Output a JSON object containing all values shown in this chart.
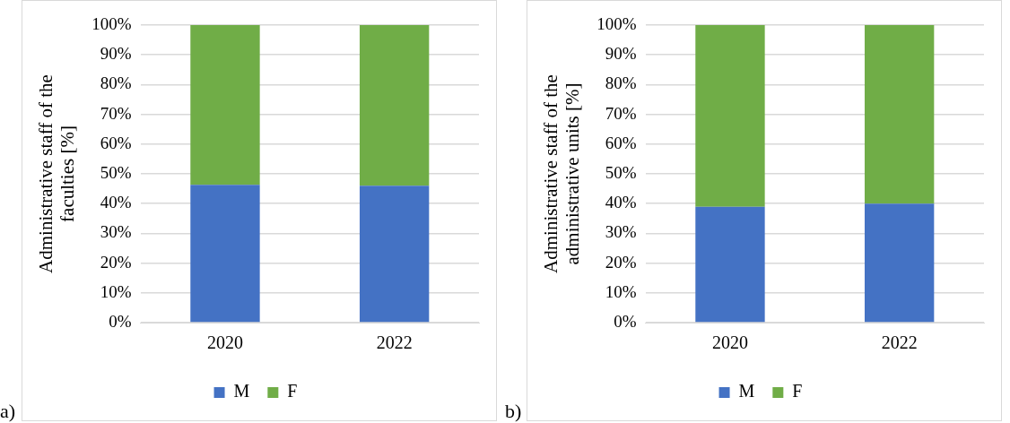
{
  "chart_data": [
    {
      "type": "bar",
      "stacked": true,
      "ylabel": "Administrative staff of the faculties [%]",
      "categories": [
        "2020",
        "2022"
      ],
      "series": [
        {
          "name": "M",
          "color": "#4472c4",
          "values": [
            46.3,
            46.0
          ]
        },
        {
          "name": "F",
          "color": "#70ad47",
          "values": [
            53.7,
            54.0
          ]
        }
      ],
      "ylim": [
        0,
        100
      ],
      "yticks": [
        {
          "value": 0,
          "label": "0%"
        },
        {
          "value": 10,
          "label": "10%"
        },
        {
          "value": 20,
          "label": "20%"
        },
        {
          "value": 30,
          "label": "30%"
        },
        {
          "value": 40,
          "label": "40%"
        },
        {
          "value": 50,
          "label": "50%"
        },
        {
          "value": 60,
          "label": "60%"
        },
        {
          "value": 70,
          "label": "70%"
        },
        {
          "value": 80,
          "label": "80%"
        },
        {
          "value": 90,
          "label": "90%"
        },
        {
          "value": 100,
          "label": "100%"
        }
      ],
      "grid": "y",
      "legend": "bottom",
      "annotations": [
        "a)"
      ]
    },
    {
      "type": "bar",
      "stacked": true,
      "ylabel": "Administrative staff of the administrative units [%]",
      "categories": [
        "2020",
        "2022"
      ],
      "series": [
        {
          "name": "M",
          "color": "#4472c4",
          "values": [
            38.9,
            40.0
          ]
        },
        {
          "name": "F",
          "color": "#70ad47",
          "values": [
            61.1,
            60.0
          ]
        }
      ],
      "ylim": [
        0,
        100
      ],
      "yticks": [
        {
          "value": 0,
          "label": "0%"
        },
        {
          "value": 10,
          "label": "10%"
        },
        {
          "value": 20,
          "label": "20%"
        },
        {
          "value": 30,
          "label": "30%"
        },
        {
          "value": 40,
          "label": "40%"
        },
        {
          "value": 50,
          "label": "50%"
        },
        {
          "value": 60,
          "label": "60%"
        },
        {
          "value": 70,
          "label": "70%"
        },
        {
          "value": 80,
          "label": "80%"
        },
        {
          "value": 90,
          "label": "90%"
        },
        {
          "value": 100,
          "label": "100%"
        }
      ],
      "grid": "y",
      "legend": "bottom",
      "annotations": [
        "b)"
      ]
    }
  ]
}
